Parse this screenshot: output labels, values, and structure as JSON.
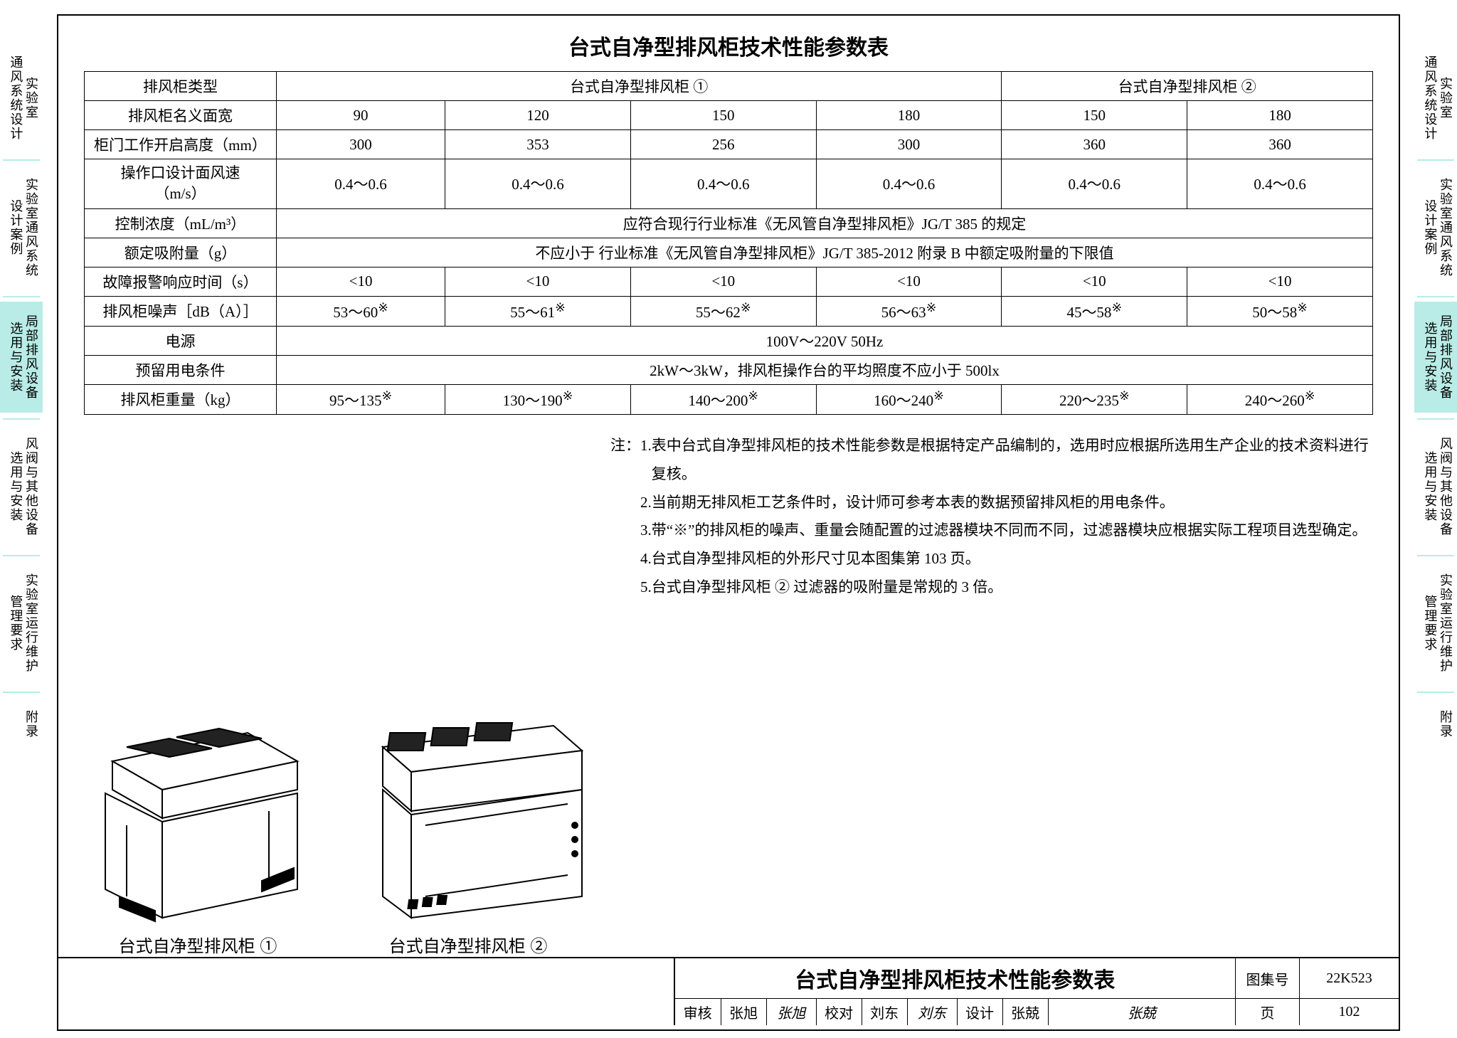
{
  "sideTabs": {
    "left": [
      {
        "label": "实验室\n通风系统设计",
        "active": false
      },
      {
        "label": "实验室通风系统\n设计案例",
        "active": false
      },
      {
        "label": "局部排风设备\n选用与安装",
        "active": true
      },
      {
        "label": "风阀与其他设备\n选用与安装",
        "active": false
      },
      {
        "label": "实验室运行维护\n管理要求",
        "active": false
      },
      {
        "label": "附录",
        "active": false
      }
    ],
    "right": [
      {
        "label": "实验室\n通风系统设计",
        "active": false
      },
      {
        "label": "实验室通风系统\n设计案例",
        "active": false
      },
      {
        "label": "局部排风设备\n选用与安装",
        "active": true
      },
      {
        "label": "风阀与其他设备\n选用与安装",
        "active": false
      },
      {
        "label": "实验室运行维护\n管理要求",
        "active": false
      },
      {
        "label": "附录",
        "active": false
      }
    ]
  },
  "title": "台式自净型排风柜技术性能参数表",
  "table": {
    "header": {
      "r1c0": "排风柜类型",
      "r1c1": "台式自净型排风柜 ①",
      "r1c2": "台式自净型排风柜 ②"
    },
    "rows": [
      {
        "label": "排风柜名义面宽",
        "cells": [
          "90",
          "120",
          "150",
          "180",
          "150",
          "180"
        ]
      },
      {
        "label": "柜门工作开启高度（mm）",
        "cells": [
          "300",
          "353",
          "256",
          "300",
          "360",
          "360"
        ]
      },
      {
        "label": "操作口设计面风速\n（m/s）",
        "cells": [
          "0.4～0.6",
          "0.4～0.6",
          "0.4～0.6",
          "0.4～0.6",
          "0.4～0.6",
          "0.4～0.6"
        ]
      },
      {
        "label": "控制浓度（mL/m³）",
        "merged": "应符合现行行业标准《无风管自净型排风柜》JG/T 385 的规定"
      },
      {
        "label": "额定吸附量（g）",
        "merged": "不应小于 行业标准《无风管自净型排风柜》JG/T 385-2012 附录 B 中额定吸附量的下限值"
      },
      {
        "label": "故障报警响应时间（s）",
        "cells": [
          "<10",
          "<10",
          "<10",
          "<10",
          "<10",
          "<10"
        ]
      },
      {
        "label": "排风柜噪声［dB（A）］",
        "cells": [
          "53～60※",
          "55～61※",
          "55～62※",
          "56～63※",
          "45～58※",
          "50～58※"
        ]
      },
      {
        "label": "电源",
        "merged": "100V～220V 50Hz"
      },
      {
        "label": "预留用电条件",
        "merged": "2kW～3kW，排风柜操作台的平均照度不应小于 500lx"
      },
      {
        "label": "排风柜重量（kg）",
        "cells": [
          "95～135※",
          "130～190※",
          "140～200※",
          "160～240※",
          "220～235※",
          "240～260※"
        ]
      }
    ],
    "colWidths": {
      "hdr": 270,
      "data": 170
    },
    "border_color": "#000000",
    "fontsize": 21
  },
  "figures": {
    "f1_caption": "台式自净型排风柜 ①",
    "f2_caption": "台式自净型排风柜 ②"
  },
  "notes": {
    "prefix": "注：",
    "items": [
      "表中台式自净型排风柜的技术性能参数是根据特定产品编制的，选用时应根据所选用生产企业的技术资料进行复核。",
      "当前期无排风柜工艺条件时，设计师可参考本表的数据预留排风柜的用电条件。",
      "带“※”的排风柜的噪声、重量会随配置的过滤器模块不同而不同，过滤器模块应根据实际工程项目选型确定。",
      "台式自净型排风柜的外形尺寸见本图集第 103 页。",
      "台式自净型排风柜 ② 过滤器的吸附量是常规的 3 倍。"
    ]
  },
  "titleblock": {
    "main": "台式自净型排风柜技术性能参数表",
    "atlas_lbl": "图集号",
    "atlas_val": "22K523",
    "review_lbl": "审核",
    "review_name": "张旭",
    "review_sig": "张旭",
    "check_lbl": "校对",
    "check_name": "刘东",
    "check_sig": "刘东",
    "design_lbl": "设计",
    "design_name": "张兢",
    "design_sig": "张兢",
    "page_lbl": "页",
    "page_val": "102"
  },
  "colors": {
    "tab_active": "#b9ece6",
    "border": "#000000",
    "bg": "#ffffff"
  }
}
